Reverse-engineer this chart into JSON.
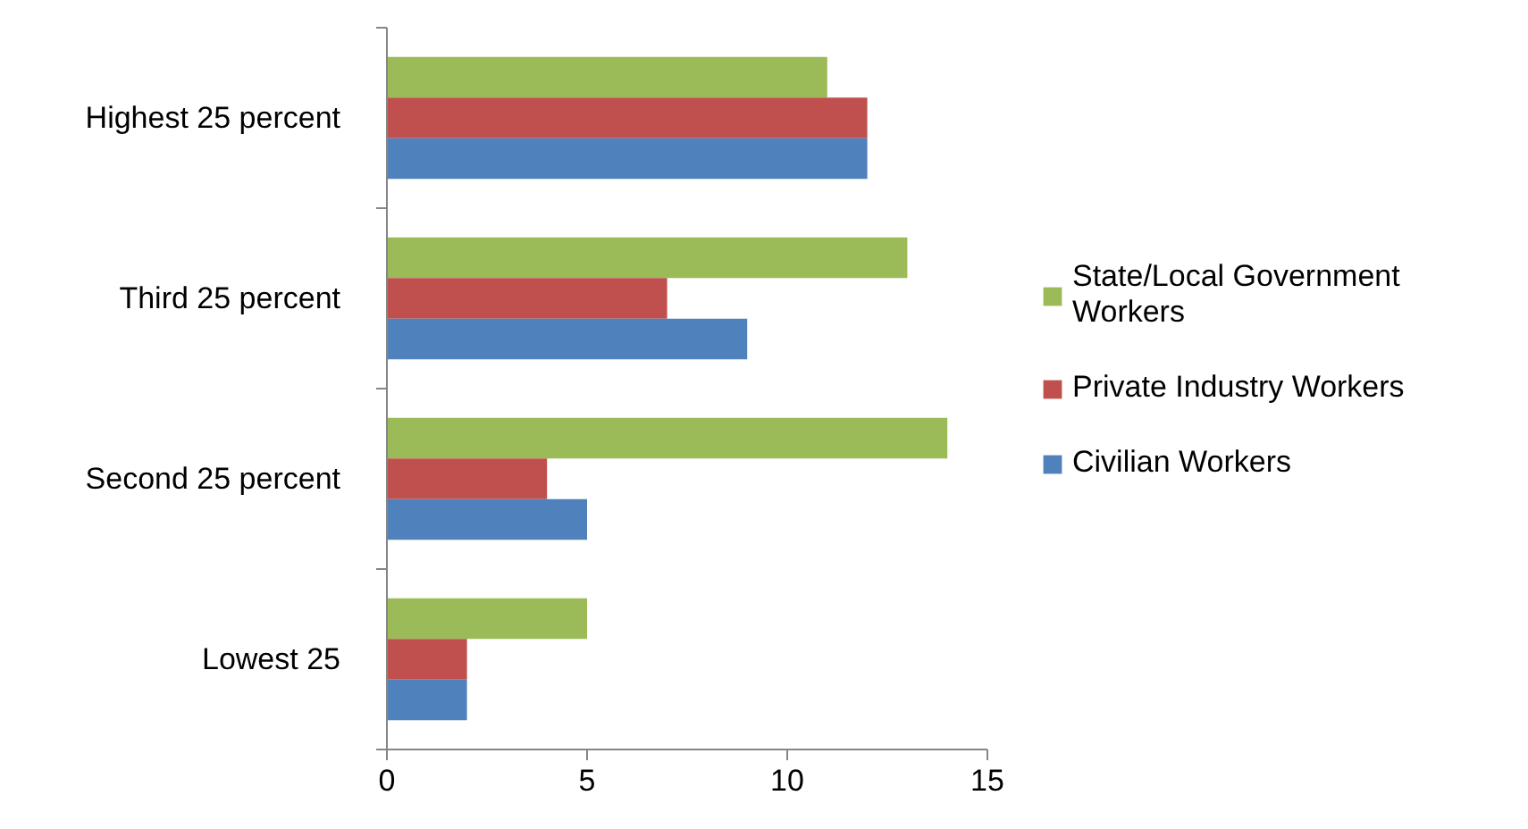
{
  "chart_data": {
    "type": "bar",
    "orientation": "horizontal",
    "categories": [
      "Highest 25 percent",
      "Third 25 percent",
      "Second 25 percent",
      "Lowest 25"
    ],
    "series": [
      {
        "name": "State/Local Government Workers",
        "color": "#9bbb59",
        "values": [
          11,
          13,
          14,
          5
        ]
      },
      {
        "name": "Private Industry Workers",
        "color": "#c0504d",
        "values": [
          12,
          7,
          4,
          2
        ]
      },
      {
        "name": "Civilian Workers",
        "color": "#4f81bd",
        "values": [
          12,
          9,
          5,
          2
        ]
      }
    ],
    "xlim": [
      0,
      15
    ],
    "xticks": [
      0,
      5,
      10,
      15
    ],
    "grid": false,
    "legend": "right"
  }
}
